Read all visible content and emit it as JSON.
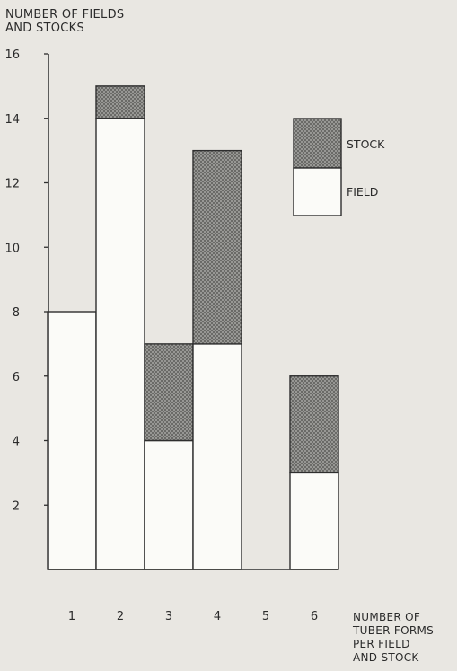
{
  "chart_data": {
    "type": "bar",
    "stacked": true,
    "y_title_lines": [
      "NUMBER OF FIELDS",
      "AND STOCKS"
    ],
    "x_title_lines": [
      "NUMBER OF",
      "TUBER FORMS",
      "PER FIELD",
      "AND STOCK"
    ],
    "categories": [
      "1",
      "2",
      "3",
      "4",
      "5",
      "6"
    ],
    "series": [
      {
        "name": "FIELD",
        "values": [
          8,
          14,
          4,
          7,
          0,
          3
        ],
        "fill": "#fbfbf8"
      },
      {
        "name": "STOCK",
        "values": [
          0,
          1,
          3,
          6,
          0,
          3
        ],
        "fill": "#9d9d9a"
      }
    ],
    "ylim": [
      0,
      16
    ],
    "yticks": [
      2,
      4,
      6,
      8,
      10,
      12,
      14,
      16
    ],
    "legend": {
      "position": "top-right",
      "order": [
        "STOCK",
        "FIELD"
      ]
    },
    "grid": false
  }
}
